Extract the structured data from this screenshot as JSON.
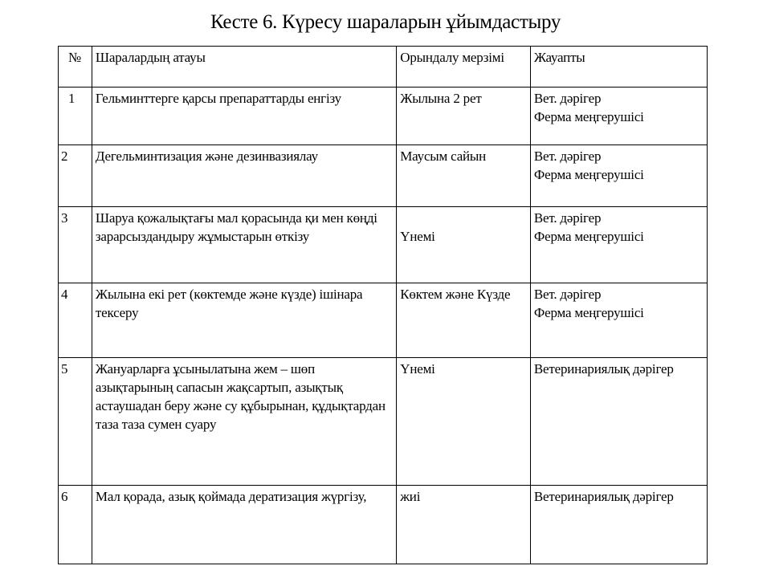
{
  "title": "Кесте 6. Күресу шараларын ұйымдастыру",
  "table": {
    "headers": [
      "№",
      "Шаралардың атауы",
      "Орындалу мерзімі",
      "Жауапты"
    ],
    "rows": [
      {
        "num": "1",
        "name": "Гельминттерге қарсы препараттарды енгізу",
        "term": "Жылына 2 рет",
        "resp": [
          "Вет. дәрігер",
          "Ферма меңгерушісі"
        ]
      },
      {
        "num": "2",
        "name": "Дегельминтизация және дезинвазиялау",
        "term": "Маусым сайын",
        "resp": [
          "Вет. дәрігер",
          "Ферма меңгерушісі"
        ]
      },
      {
        "num": "3",
        "name": "Шаруа қожалықтағы мал қорасында қи мен көңді зарарсыздандыру жұмыстарын өткізу",
        "term": "Үнемі",
        "resp": [
          "Вет. дәрігер",
          "Ферма меңгерушісі"
        ]
      },
      {
        "num": "4",
        "name": "Жылына екі рет (көктемде және күзде) ішінара тексеру",
        "term": "Көктем және Күзде",
        "resp": [
          "Вет. дәрігер",
          "Ферма меңгерушісі"
        ]
      },
      {
        "num": "5",
        "name": "Жануарларға ұсынылатына жем – шөп азықтарының сапасын жақсартып, азықтық астаушадан беру және су құбырынан, құдықтардан таза таза сумен суару",
        "term": "Үнемі",
        "resp": [
          "Ветеринариялық дәрігер"
        ]
      },
      {
        "num": "6",
        "name": "Мал қорада, азық қоймада дератизация жүргізу,",
        "term": "жиі",
        "resp": [
          "Ветеринариялық дәрігер"
        ]
      }
    ]
  }
}
